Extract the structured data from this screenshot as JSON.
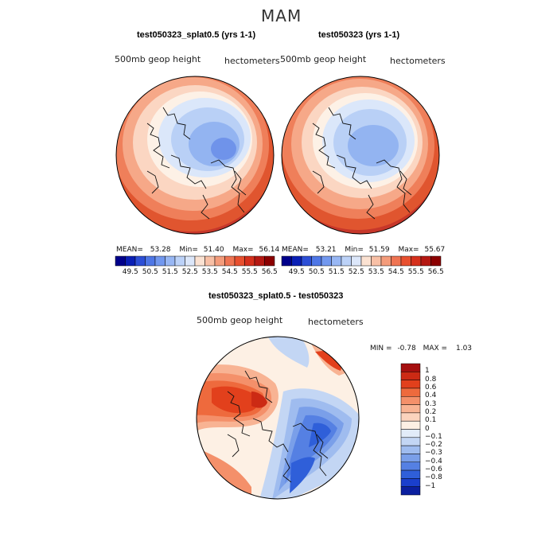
{
  "season": "MAM",
  "panels": [
    {
      "title": "test050323_splat0.5 (yrs 1-1)",
      "variable": "500mb geop height",
      "units": "hectometers",
      "mean_label": "MEAN=",
      "mean": "53.28",
      "min_label": "Min=",
      "min": "51.40",
      "max_label": "Max=",
      "max": "56.14"
    },
    {
      "title": "test050323 (yrs 1-1)",
      "variable": "500mb geop height",
      "units": "hectometers",
      "mean_label": "MEAN=",
      "mean": "53.21",
      "min_label": "Min=",
      "min": "51.59",
      "max_label": "Max=",
      "max": "55.67"
    }
  ],
  "colorbar_top": {
    "ticks": [
      "49.5",
      "50.5",
      "51.5",
      "52.5",
      "53.5",
      "54.5",
      "55.5",
      "56.5"
    ],
    "colors": [
      "#00008b",
      "#0a1fb5",
      "#2d4fd6",
      "#4f77e6",
      "#7298ef",
      "#98b7f4",
      "#bcd2f8",
      "#dce7fa",
      "#fbe2d2",
      "#f8c0a6",
      "#f49c7b",
      "#ef7452",
      "#e8502f",
      "#d5301c",
      "#b51812",
      "#8b0000"
    ]
  },
  "diff_panel": {
    "title": "test050323_splat0.5 - test050323",
    "variable": "500mb geop height",
    "units": "hectometers",
    "min_label": "MIN =",
    "min": "-0.78",
    "max_label": "MAX =",
    "max": "1.03"
  },
  "colorbar_diff": {
    "labels": [
      "1",
      "0.8",
      "0.6",
      "0.4",
      "0.3",
      "0.2",
      "0.1",
      "0",
      "−0.1",
      "−0.2",
      "−0.3",
      "−0.4",
      "−0.6",
      "−0.8",
      "−1"
    ],
    "colors": [
      "#a50f0f",
      "#cc2a14",
      "#e2401c",
      "#ee6a3d",
      "#f4906a",
      "#f8b393",
      "#fbd3bd",
      "#fdf0e4",
      "#e2ecf9",
      "#c3d6f4",
      "#9fbcef",
      "#7a9fe9",
      "#5580e3",
      "#2f5fd9",
      "#1a3fcc",
      "#0b1f9f"
    ]
  }
}
